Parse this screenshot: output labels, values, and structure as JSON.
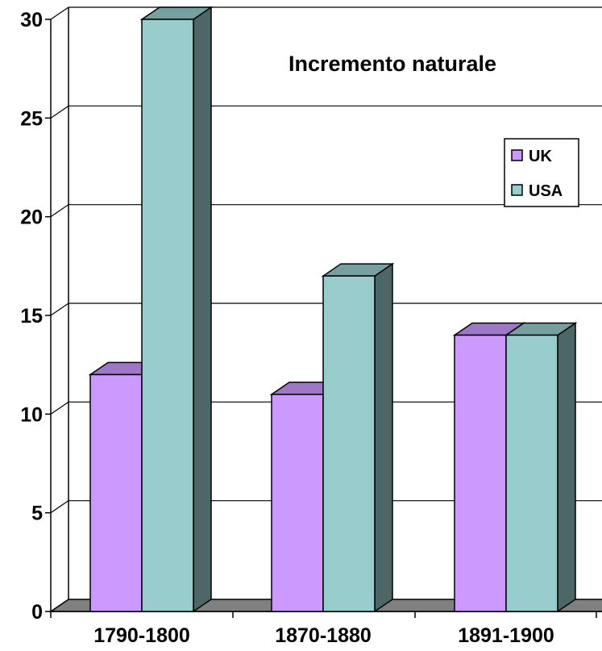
{
  "chart_data": {
    "type": "bar",
    "title": "Incremento naturale",
    "xlabel": "",
    "ylabel": "",
    "categories": [
      "1790-1800",
      "1870-1880",
      "1891-1900"
    ],
    "series": [
      {
        "name": "UK",
        "values": [
          12,
          11,
          14
        ],
        "color": "#cc99ff"
      },
      {
        "name": "USA",
        "values": [
          30,
          17,
          14
        ],
        "color": "#99cccc"
      }
    ],
    "ylim": [
      0,
      30
    ],
    "yticks": [
      "0",
      "5",
      "10",
      "15",
      "20",
      "25",
      "30"
    ],
    "grid": true,
    "legend_position": "top-right",
    "style": "3d"
  }
}
